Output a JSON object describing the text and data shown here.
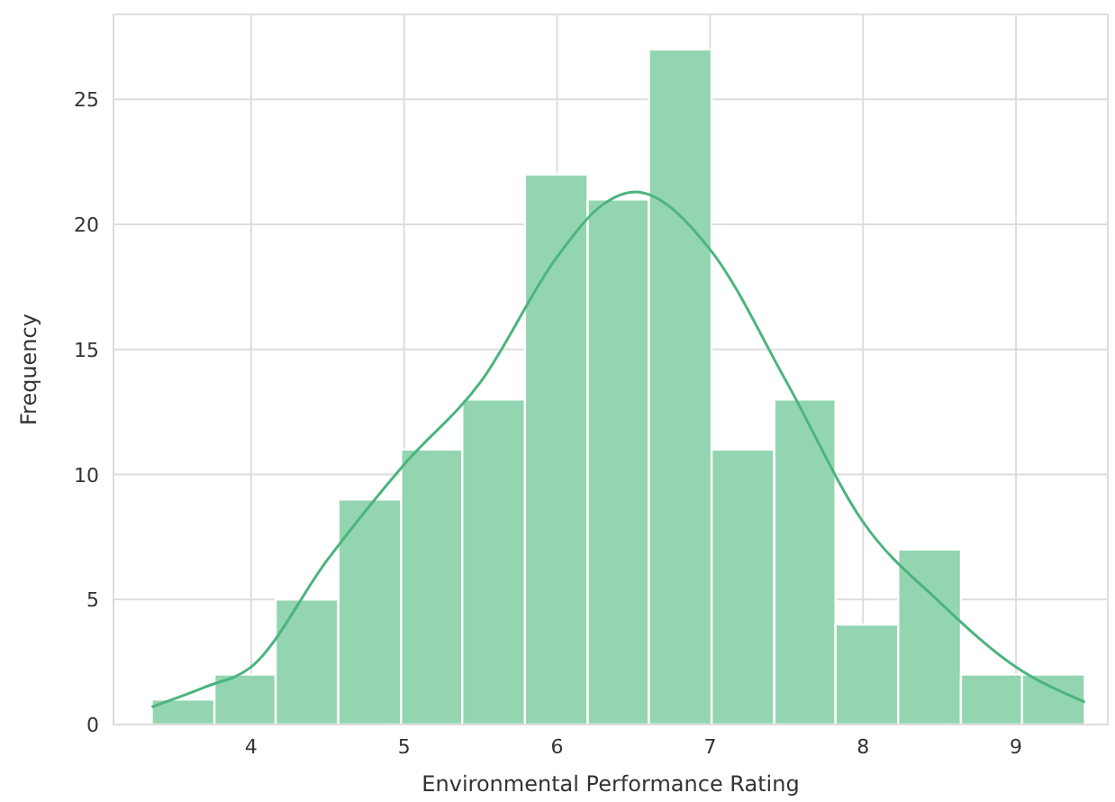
{
  "chart_data": {
    "type": "histogram",
    "xlabel": "Environmental Performance Rating",
    "ylabel": "Frequency",
    "bins": [
      3.35,
      3.76,
      4.16,
      4.57,
      4.98,
      5.38,
      5.79,
      6.2,
      6.6,
      7.01,
      7.42,
      7.82,
      8.23,
      8.64,
      9.04,
      9.45
    ],
    "series": [
      {
        "color": "#93d5b0",
        "values": [
          1,
          2,
          5,
          9,
          11,
          13,
          22,
          21,
          27,
          11,
          13,
          4,
          7,
          2,
          2
        ]
      },
      {
        "type": "line",
        "color": "#4cb47f",
        "x": [
          3.35,
          3.7,
          4.0,
          4.5,
          5.0,
          5.5,
          6.0,
          6.3,
          6.51,
          7.0,
          7.5,
          8.0,
          8.5,
          9.0,
          9.45
        ],
        "values": [
          0.7,
          1.5,
          2.3,
          6.6,
          10.4,
          13.7,
          18.7,
          20.8,
          21.3,
          19.0,
          13.7,
          8.1,
          4.9,
          2.3,
          0.9
        ]
      }
    ],
    "xlim": [
      3.1,
      9.6
    ],
    "xticks": [
      4,
      5,
      6,
      7,
      8,
      9
    ],
    "ylim": [
      0,
      28.4
    ],
    "yticks": [
      0,
      5,
      10,
      15,
      20,
      25
    ],
    "grid": true
  }
}
